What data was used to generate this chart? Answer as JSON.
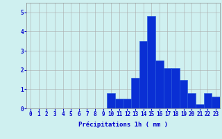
{
  "hours": [
    0,
    1,
    2,
    3,
    4,
    5,
    6,
    7,
    8,
    9,
    10,
    11,
    12,
    13,
    14,
    15,
    16,
    17,
    18,
    19,
    20,
    21,
    22,
    23
  ],
  "values": [
    0.0,
    0.0,
    0.0,
    0.0,
    0.0,
    0.0,
    0.0,
    0.0,
    0.0,
    0.0,
    0.8,
    0.5,
    0.5,
    1.6,
    3.5,
    4.8,
    2.5,
    2.1,
    2.1,
    1.5,
    0.8,
    0.2,
    0.8,
    0.6
  ],
  "bar_color": "#0a2fd4",
  "bar_edge_color": "#2255dd",
  "background_color": "#cff0f0",
  "grid_color": "#aaaaaa",
  "xlabel": "Précipitations 1h ( mm )",
  "xlabel_color": "#0000cc",
  "tick_color": "#0000cc",
  "ylim": [
    0,
    5.5
  ],
  "yticks": [
    0,
    1,
    2,
    3,
    4,
    5
  ],
  "label_fontsize": 6.5,
  "tick_fontsize": 5.5
}
